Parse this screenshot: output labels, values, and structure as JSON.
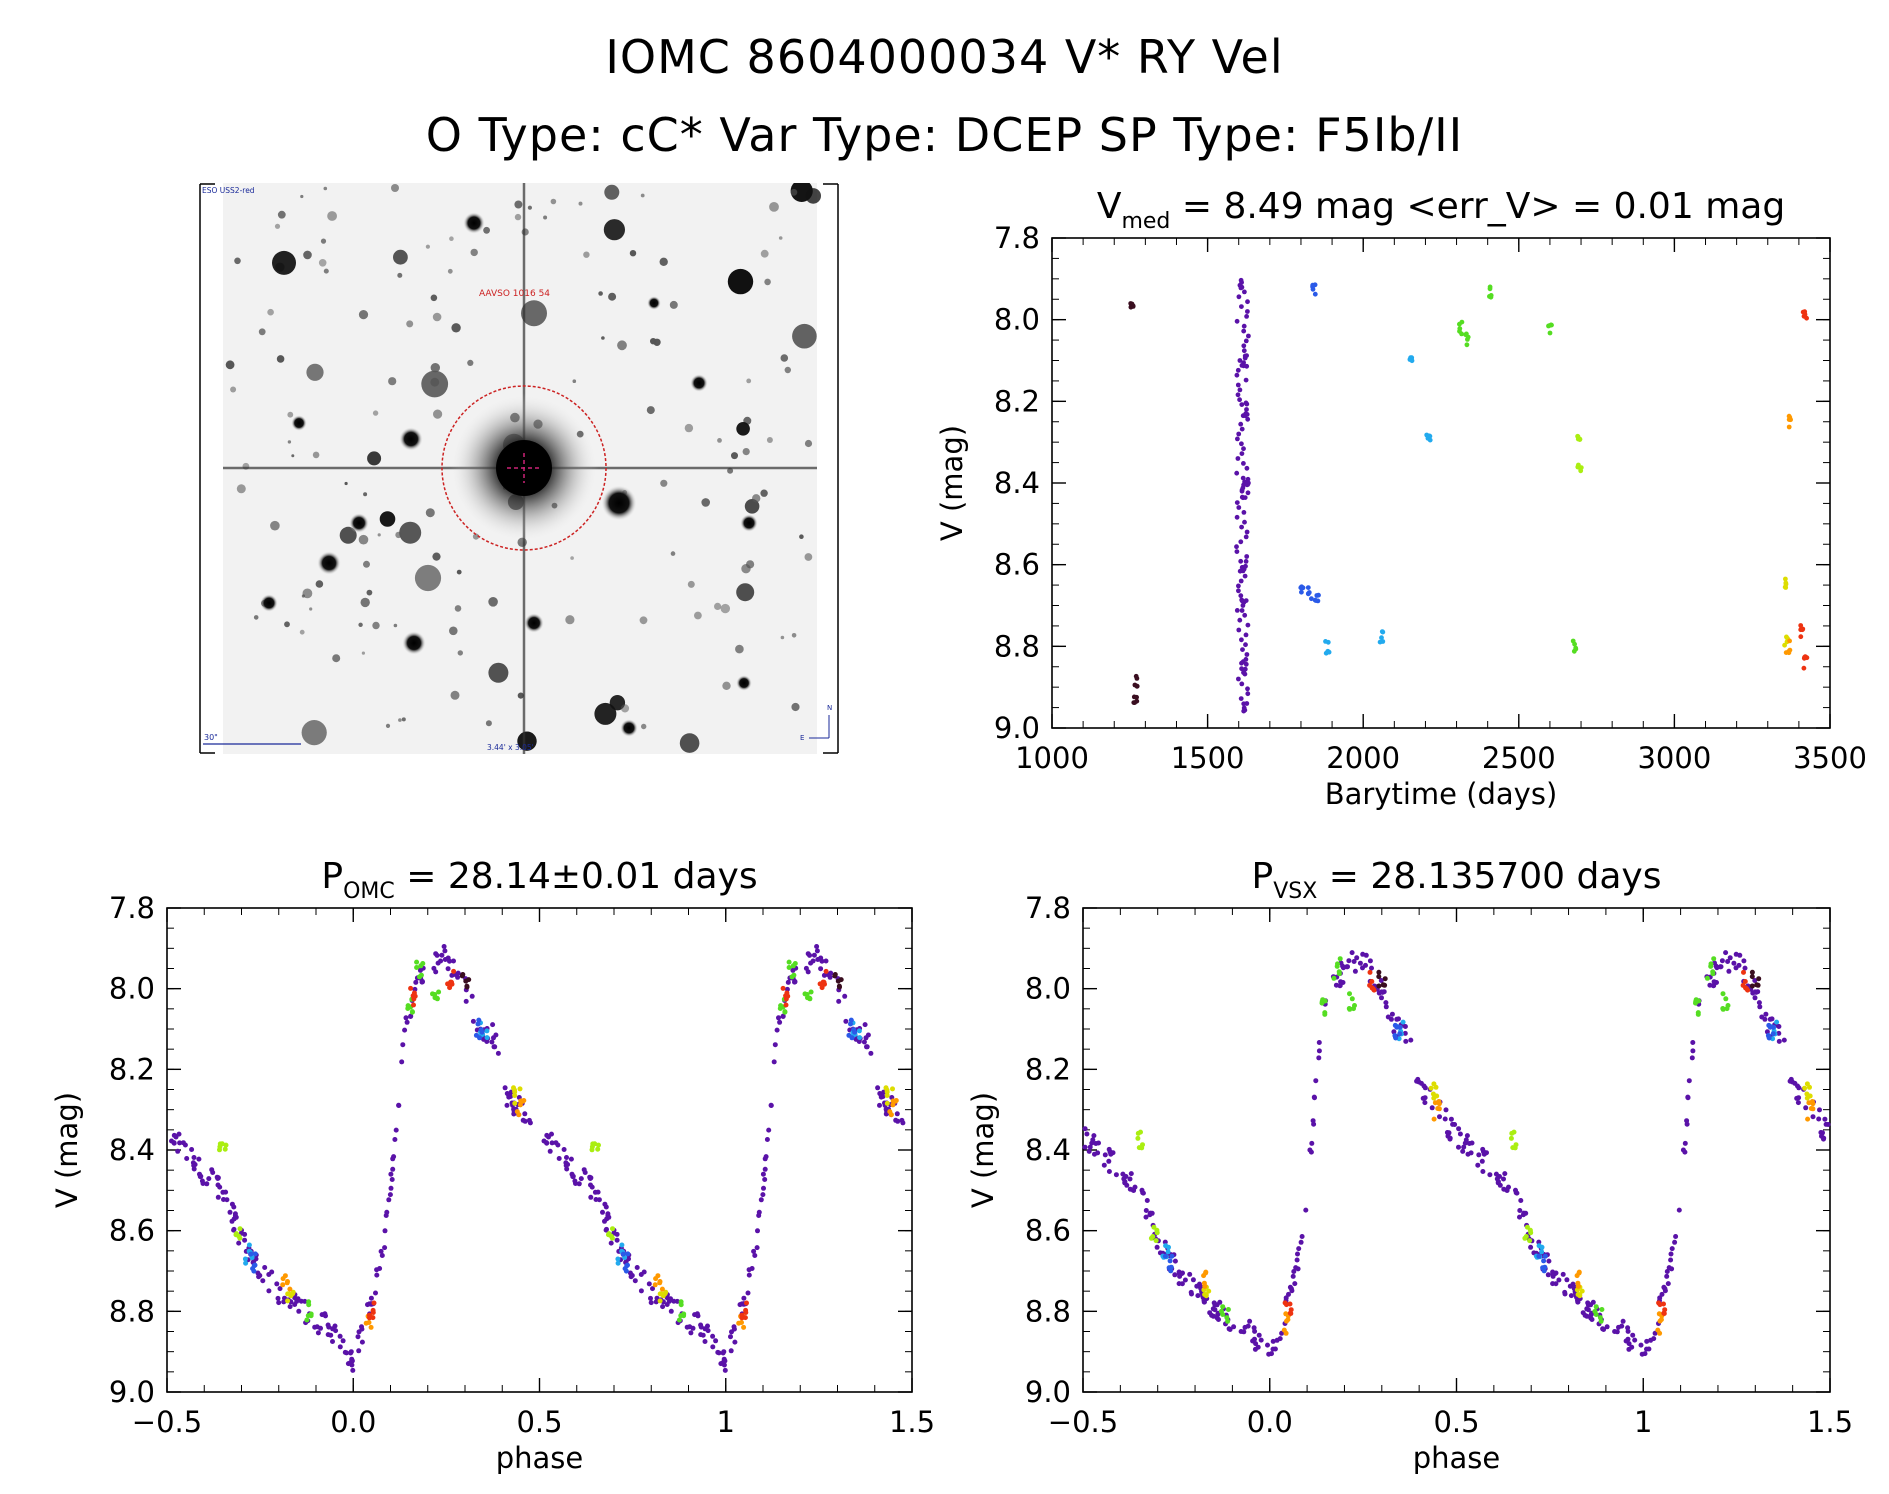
{
  "header": {
    "title": "IOMC 8604000034    V* RY Vel",
    "subtitle": "O Type: cC*   Var Type: DCEP   SP Type: F5Ib/II"
  },
  "sky_image": {
    "corner_label": "ESO USS2-red",
    "target_label": "AAVSO 1016 54",
    "scale_label": "30\"",
    "fov_label": "3.44' x 3.05'",
    "north_label": "N",
    "east_label": "E"
  },
  "colors": {
    "purple": "#5a12a8",
    "darkred": "#3a0e20",
    "blue": "#2a5ae8",
    "cyan": "#22aaee",
    "green": "#55dd22",
    "lime": "#aaee11",
    "yellow": "#dddd00",
    "orange": "#ff9900",
    "red": "#ee3311"
  },
  "chart_data": [
    {
      "type": "scatter",
      "title_main": "V",
      "title_sub": "med",
      "title_rest": " = 8.49 mag <err_V> = 0.01 mag",
      "xlabel": "Barytime (days)",
      "ylabel": "V (mag)",
      "xlim": [
        1000,
        3500
      ],
      "ylim": [
        9.0,
        7.8
      ],
      "xticks": [
        1000,
        1500,
        2000,
        2500,
        3000,
        3500
      ],
      "yticks": [
        7.8,
        8.0,
        8.2,
        8.4,
        8.6,
        8.8,
        9.0
      ],
      "series": [
        {
          "color": "darkred",
          "points": [
            [
              1255,
              7.97
            ],
            [
              1268,
              8.89
            ],
            [
              1268,
              8.93
            ]
          ]
        },
        {
          "color": "purple",
          "points": [
            [
              1610,
              7.92
            ],
            [
              1620,
              8.1
            ],
            [
              1620,
              8.22
            ],
            [
              1615,
              8.42
            ],
            [
              1625,
              8.4
            ],
            [
              1612,
              8.6
            ],
            [
              1614,
              8.7
            ],
            [
              1612,
              8.85
            ],
            [
              1616,
              8.95
            ]
          ]
        },
        {
          "color": "blue",
          "points": [
            [
              1840,
              7.93
            ],
            [
              1805,
              8.67
            ],
            [
              1830,
              8.67
            ],
            [
              1850,
              8.69
            ]
          ]
        },
        {
          "color": "cyan",
          "points": [
            [
              2155,
              8.09
            ],
            [
              2210,
              8.28
            ],
            [
              1885,
              8.8
            ],
            [
              2060,
              8.78
            ]
          ]
        },
        {
          "color": "green",
          "points": [
            [
              2315,
              8.02
            ],
            [
              2335,
              8.05
            ],
            [
              2410,
              7.93
            ],
            [
              2600,
              8.03
            ],
            [
              2680,
              8.8
            ]
          ]
        },
        {
          "color": "lime",
          "points": [
            [
              2695,
              8.28
            ],
            [
              2695,
              8.37
            ]
          ]
        },
        {
          "color": "yellow",
          "points": [
            [
              3355,
              8.65
            ],
            [
              3360,
              8.79
            ]
          ]
        },
        {
          "color": "orange",
          "points": [
            [
              3370,
              8.25
            ],
            [
              3365,
              8.8
            ]
          ]
        },
        {
          "color": "red",
          "points": [
            [
              3420,
              7.99
            ],
            [
              3410,
              8.76
            ],
            [
              3420,
              8.84
            ]
          ]
        }
      ]
    },
    {
      "type": "scatter",
      "title_main": "P",
      "title_sub": "OMC",
      "title_rest": " = 28.14±0.01 days",
      "xlabel": "phase",
      "ylabel": "V (mag)",
      "xlim": [
        -0.5,
        1.5
      ],
      "ylim": [
        9.0,
        7.8
      ],
      "xticks": [
        -0.5,
        0.0,
        0.5,
        1.0,
        1.5
      ],
      "yticks": [
        7.8,
        8.0,
        8.2,
        8.4,
        8.6,
        8.8,
        9.0
      ],
      "curve": [
        [
          0.0,
          8.92
        ],
        [
          0.05,
          8.78
        ],
        [
          0.08,
          8.65
        ],
        [
          0.1,
          8.5
        ],
        [
          0.14,
          8.08
        ],
        [
          0.18,
          7.97
        ],
        [
          0.24,
          7.92
        ],
        [
          0.3,
          8.0
        ],
        [
          0.34,
          8.1
        ],
        [
          0.38,
          8.12
        ],
        [
          0.4,
          8.25
        ],
        [
          0.45,
          8.3
        ],
        [
          0.5,
          8.37
        ],
        [
          0.55,
          8.4
        ],
        [
          0.6,
          8.46
        ],
        [
          0.65,
          8.5
        ],
        [
          0.7,
          8.62
        ],
        [
          0.75,
          8.7
        ],
        [
          0.8,
          8.75
        ],
        [
          0.85,
          8.79
        ],
        [
          0.9,
          8.82
        ],
        [
          0.95,
          8.85
        ],
        [
          1.0,
          8.92
        ]
      ],
      "colored": [
        {
          "color": "lime",
          "points": [
            [
              0.65,
              8.38
            ],
            [
              0.69,
              8.6
            ]
          ]
        },
        {
          "color": "cyan",
          "points": [
            [
              0.35,
              8.1
            ],
            [
              0.72,
              8.66
            ]
          ]
        },
        {
          "color": "blue",
          "points": [
            [
              0.73,
              8.68
            ],
            [
              0.34,
              8.1
            ]
          ]
        },
        {
          "color": "green",
          "points": [
            [
              0.15,
              8.05
            ],
            [
              0.18,
              7.95
            ],
            [
              0.22,
              8.03
            ],
            [
              0.88,
              8.8
            ]
          ]
        },
        {
          "color": "yellow",
          "points": [
            [
              0.83,
              8.76
            ],
            [
              0.44,
              8.26
            ]
          ]
        },
        {
          "color": "orange",
          "points": [
            [
              0.45,
              8.3
            ],
            [
              0.82,
              8.72
            ],
            [
              0.04,
              8.83
            ]
          ]
        },
        {
          "color": "red",
          "points": [
            [
              0.05,
              8.8
            ],
            [
              0.16,
              8.02
            ],
            [
              0.26,
              7.98
            ]
          ]
        },
        {
          "color": "darkred",
          "points": [
            [
              0.3,
              7.98
            ]
          ]
        }
      ]
    },
    {
      "type": "scatter",
      "title_main": "P",
      "title_sub": "VSX",
      "title_rest": " = 28.135700 days",
      "xlabel": "phase",
      "ylabel": "V (mag)",
      "xlim": [
        -0.5,
        1.5
      ],
      "ylim": [
        9.0,
        7.8
      ],
      "xticks": [
        -0.5,
        0.0,
        0.5,
        1.0,
        1.5
      ],
      "yticks": [
        7.8,
        8.0,
        8.2,
        8.4,
        8.6,
        8.8,
        9.0
      ],
      "curve": [
        [
          0.0,
          8.92
        ],
        [
          0.05,
          8.78
        ],
        [
          0.08,
          8.65
        ],
        [
          0.1,
          8.5
        ],
        [
          0.14,
          8.08
        ],
        [
          0.18,
          7.97
        ],
        [
          0.24,
          7.92
        ],
        [
          0.3,
          8.0
        ],
        [
          0.34,
          8.1
        ],
        [
          0.38,
          8.12
        ],
        [
          0.4,
          8.25
        ],
        [
          0.45,
          8.3
        ],
        [
          0.5,
          8.37
        ],
        [
          0.55,
          8.4
        ],
        [
          0.6,
          8.46
        ],
        [
          0.65,
          8.5
        ],
        [
          0.7,
          8.62
        ],
        [
          0.75,
          8.7
        ],
        [
          0.8,
          8.75
        ],
        [
          0.85,
          8.79
        ],
        [
          0.9,
          8.82
        ],
        [
          0.95,
          8.85
        ],
        [
          1.0,
          8.92
        ]
      ],
      "colored": [
        {
          "color": "lime",
          "points": [
            [
              0.65,
              8.38
            ],
            [
              0.69,
              8.6
            ]
          ]
        },
        {
          "color": "cyan",
          "points": [
            [
              0.35,
              8.1
            ],
            [
              0.72,
              8.66
            ]
          ]
        },
        {
          "color": "blue",
          "points": [
            [
              0.73,
              8.68
            ],
            [
              0.34,
              8.1
            ]
          ]
        },
        {
          "color": "green",
          "points": [
            [
              0.15,
              8.05
            ],
            [
              0.18,
              7.95
            ],
            [
              0.22,
              8.03
            ],
            [
              0.88,
              8.8
            ]
          ]
        },
        {
          "color": "yellow",
          "points": [
            [
              0.83,
              8.76
            ],
            [
              0.44,
              8.26
            ]
          ]
        },
        {
          "color": "orange",
          "points": [
            [
              0.45,
              8.3
            ],
            [
              0.82,
              8.72
            ],
            [
              0.04,
              8.83
            ]
          ]
        },
        {
          "color": "red",
          "points": [
            [
              0.05,
              8.8
            ],
            [
              0.27,
              7.98
            ]
          ]
        },
        {
          "color": "darkred",
          "points": [
            [
              0.3,
              7.98
            ]
          ]
        }
      ]
    }
  ]
}
